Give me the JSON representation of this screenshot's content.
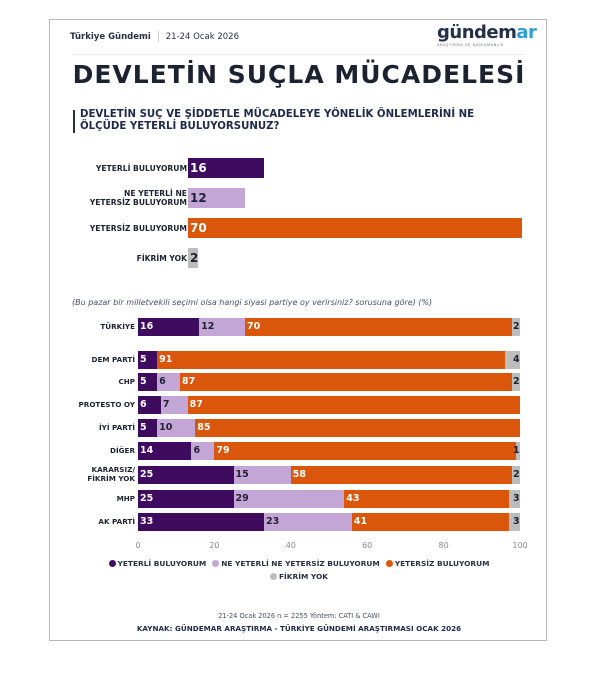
{
  "header": {
    "brand_text": "Türkiye Gündemi",
    "date": "21-24 Ocak 2026",
    "logo_main": "gündem",
    "logo_accent": "ar",
    "logo_sub": "ARAŞTIRMA VE DANIŞMANLIK"
  },
  "title": "DEVLETİN SUÇLA MÜCADELESİ",
  "question": "DEVLETİN SUÇ VE ŞİDDETLE MÜCADELEYE YÖNELİK ÖNLEMLERİNİ NE ÖLÇÜDE YETERLİ BULUYORSUNUZ?",
  "colors": {
    "yeterli": "#3f0b5e",
    "ne_ne": "#c3a6d6",
    "yetersiz": "#d9560b",
    "fikrim_yok": "#bdbdbd"
  },
  "chart_data": [
    {
      "type": "bar",
      "orientation": "horizontal",
      "categories": [
        "YETERLİ BULUYORUM",
        "NE YETERLİ NE YETERSİZ BULUYORUM",
        "YETERSİZ BULUYORUM",
        "FİKRİM YOK"
      ],
      "category_lines": [
        [
          "YETERLİ BULUYORUM"
        ],
        [
          "NE YETERLİ NE",
          "YETERSİZ BULUYORUM"
        ],
        [
          "YETERSİZ BULUYORUM"
        ],
        [
          "FİKRİM YOK"
        ]
      ],
      "values": [
        16,
        12,
        70,
        2
      ],
      "value_labels": [
        "16",
        "12",
        "70",
        "2"
      ],
      "xlim": [
        0,
        70
      ],
      "grid": false
    },
    {
      "type": "bar",
      "orientation": "horizontal",
      "stacked": true,
      "subtitle": "(Bu pazar bir milletvekili seçimi olsa hangi siyasi partiye oy verirsiniz? sorusuna göre) (%)",
      "categories": [
        "TÜRKİYE",
        "DEM PARTİ",
        "CHP",
        "PROTESTO OY",
        "İYİ PARTİ",
        "DİĞER",
        "KARARSIZ/ FİKRİM YOK",
        "MHP",
        "AK PARTİ"
      ],
      "category_lines": [
        [
          "TÜRKİYE"
        ],
        [
          "DEM PARTİ"
        ],
        [
          "CHP"
        ],
        [
          "PROTESTO OY"
        ],
        [
          "İYİ PARTİ"
        ],
        [
          "DİĞER"
        ],
        [
          "KARARSIZ/",
          "FİKRİM YOK"
        ],
        [
          "MHP"
        ],
        [
          "AK PARTİ"
        ]
      ],
      "series": [
        {
          "name": "YETERLİ BULUYORUM",
          "values": [
            16,
            5,
            5,
            6,
            5,
            14,
            25,
            25,
            33
          ]
        },
        {
          "name": "NE YETERLİ NE YETERSİZ BULUYORUM",
          "values": [
            12,
            0,
            6,
            7,
            10,
            6,
            15,
            29,
            23
          ]
        },
        {
          "name": "YETERSİZ BULUYORUM",
          "values": [
            70,
            91,
            87,
            87,
            85,
            79,
            58,
            43,
            41
          ]
        },
        {
          "name": "FİKRİM YOK",
          "values": [
            2,
            4,
            2,
            0,
            0,
            1,
            2,
            3,
            3
          ]
        }
      ],
      "xlim": [
        0,
        100
      ],
      "xticks": [
        "0",
        "20",
        "40",
        "60",
        "80",
        "100"
      ],
      "legend_position": "bottom",
      "grid": false
    }
  ],
  "footer": {
    "method": "21-24 Ocak 2026 n = 2255 Yöntem: CATI & CAWI",
    "source": "KAYNAK: GÜNDEMAR ARAŞTIRMA - TÜRKİYE GÜNDEMİ ARAŞTIRMASI OCAK 2026"
  }
}
